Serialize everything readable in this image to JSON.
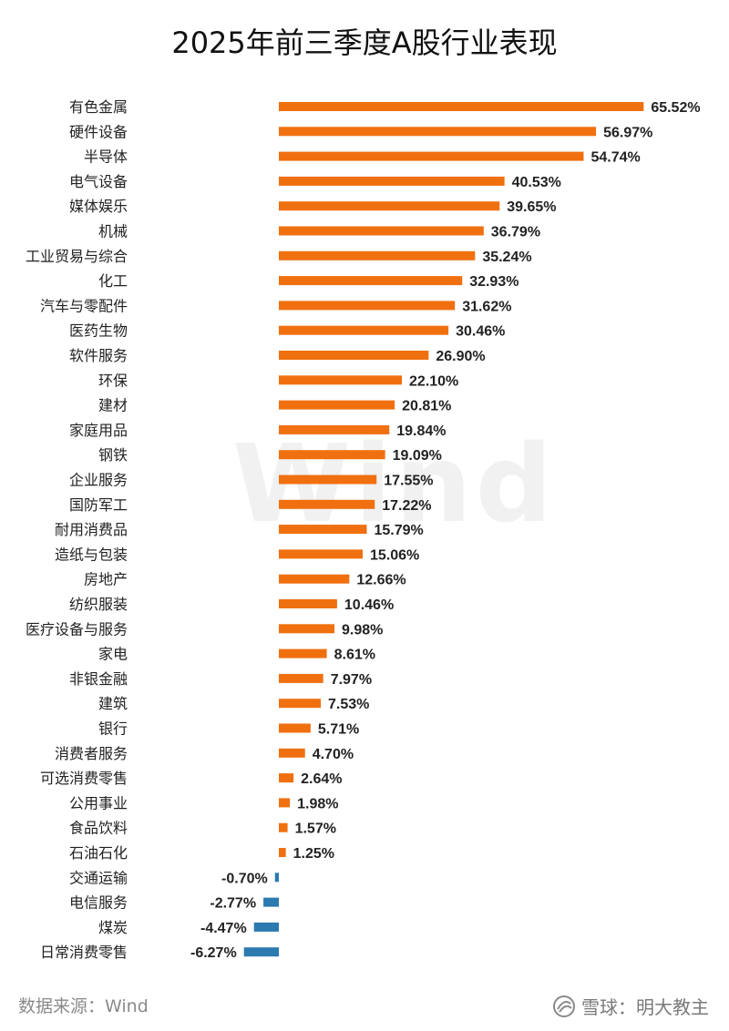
{
  "chart_data": {
    "type": "bar",
    "orientation": "horizontal",
    "title": "2025年前三季度A股行业表现",
    "categories": [
      "有色金属",
      "硬件设备",
      "半导体",
      "电气设备",
      "媒体娱乐",
      "机械",
      "工业贸易与综合",
      "化工",
      "汽车与零配件",
      "医药生物",
      "软件服务",
      "环保",
      "建材",
      "家庭用品",
      "钢铁",
      "企业服务",
      "国防军工",
      "耐用消费品",
      "造纸与包装",
      "房地产",
      "纺织服装",
      "医疗设备与服务",
      "家电",
      "非银金融",
      "建筑",
      "银行",
      "消费者服务",
      "可选消费零售",
      "公用事业",
      "食品饮料",
      "石油石化",
      "交通运输",
      "电信服务",
      "煤炭",
      "日常消费零售"
    ],
    "values": [
      65.52,
      56.97,
      54.74,
      40.53,
      39.65,
      36.79,
      35.24,
      32.93,
      31.62,
      30.46,
      26.9,
      22.1,
      20.81,
      19.84,
      19.09,
      17.55,
      17.22,
      15.79,
      15.06,
      12.66,
      10.46,
      9.98,
      8.61,
      7.97,
      7.53,
      5.71,
      4.7,
      2.64,
      1.98,
      1.57,
      1.25,
      -0.7,
      -2.77,
      -4.47,
      -6.27
    ],
    "labels": [
      "65.52%",
      "56.97%",
      "54.74%",
      "40.53%",
      "39.65%",
      "36.79%",
      "35.24%",
      "32.93%",
      "31.62%",
      "30.46%",
      "26.90%",
      "22.10%",
      "20.81%",
      "19.84%",
      "19.09%",
      "17.55%",
      "17.22%",
      "15.79%",
      "15.06%",
      "12.66%",
      "10.46%",
      "9.98%",
      "8.61%",
      "7.97%",
      "7.53%",
      "5.71%",
      "4.70%",
      "2.64%",
      "1.98%",
      "1.57%",
      "1.25%",
      "-0.70%",
      "-2.77%",
      "-4.47%",
      "-6.27%"
    ],
    "colors": {
      "positive": "#f07010",
      "negative": "#2b7ab0"
    },
    "grid": false,
    "legend": "none"
  },
  "watermark": "Wind",
  "source": "数据来源：Wind",
  "brand": "雪球：明大教主"
}
